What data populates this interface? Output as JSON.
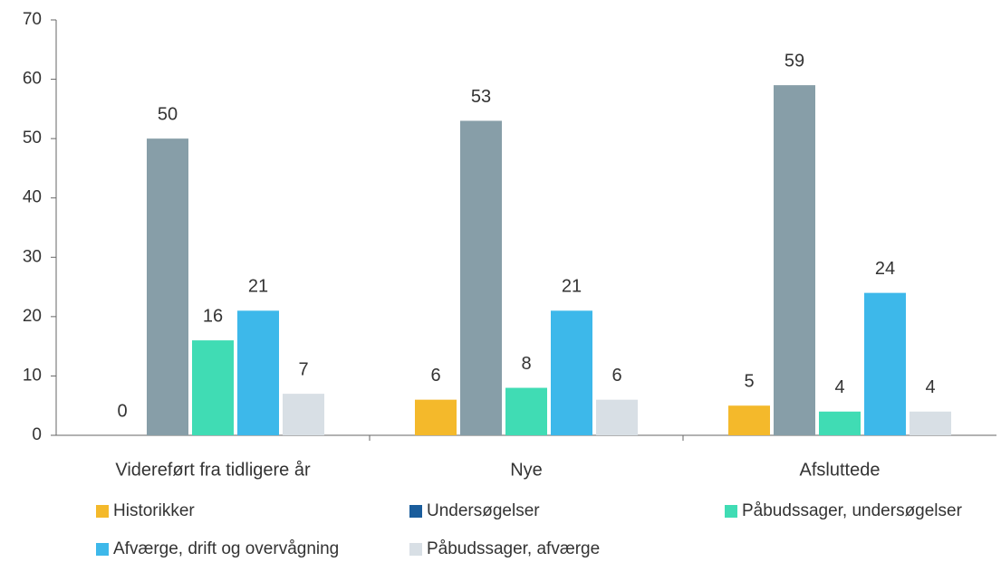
{
  "chart_data": {
    "type": "bar",
    "categories": [
      "Videreført fra tidligere år",
      "Nye",
      "Afsluttede"
    ],
    "series": [
      {
        "name": "Historikker",
        "color": "#f4b92b",
        "values": [
          0,
          6,
          5
        ]
      },
      {
        "name": "Undersøgelser",
        "color": "#879ea8",
        "legend_color": "#1a5d9c",
        "values": [
          50,
          53,
          59
        ]
      },
      {
        "name": "Påbudssager, undersøgelser",
        "color": "#40dcb4",
        "values": [
          16,
          8,
          4
        ]
      },
      {
        "name": "Afværge, drift og overvågning",
        "color": "#3db8ea",
        "values": [
          21,
          21,
          24
        ]
      },
      {
        "name": "Påbudssager, afværge",
        "color": "#d8dfe5",
        "values": [
          7,
          6,
          4
        ]
      }
    ],
    "ylim": [
      0,
      70
    ],
    "yticks": [
      0,
      10,
      20,
      30,
      40,
      50,
      60,
      70
    ]
  }
}
